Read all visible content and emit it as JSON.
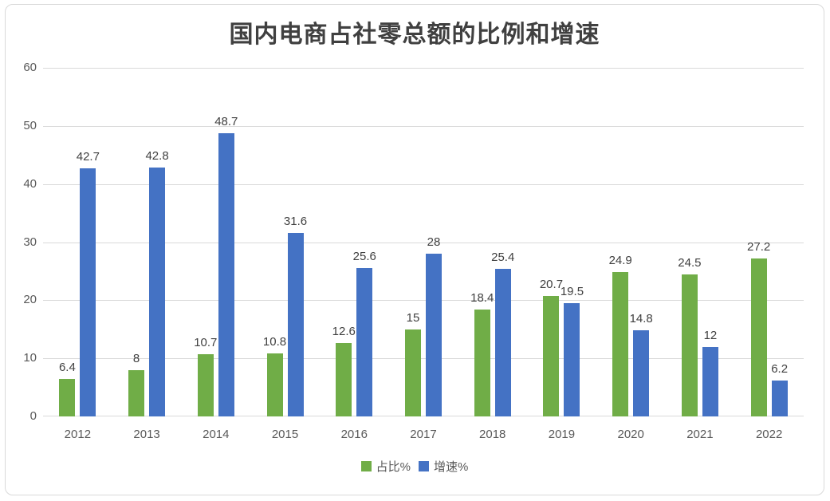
{
  "chart_data": {
    "type": "bar",
    "title": "国内电商占社零总额的比例和增速",
    "categories": [
      "2012",
      "2013",
      "2014",
      "2015",
      "2016",
      "2017",
      "2018",
      "2019",
      "2020",
      "2021",
      "2022"
    ],
    "series": [
      {
        "name": "占比%",
        "color": "#70AD47",
        "values": [
          6.4,
          8,
          10.7,
          10.8,
          12.6,
          15,
          18.4,
          20.7,
          24.9,
          24.5,
          27.2
        ]
      },
      {
        "name": "增速%",
        "color": "#4472C4",
        "values": [
          42.7,
          42.8,
          48.7,
          31.6,
          25.6,
          28,
          25.4,
          19.5,
          14.8,
          12,
          6.2
        ]
      }
    ],
    "y_axis": {
      "min": 0,
      "max": 60,
      "step": 10,
      "ticks": [
        "0",
        "10",
        "20",
        "30",
        "40",
        "50",
        "60"
      ]
    },
    "xlabel": "",
    "ylabel": "",
    "grid": true,
    "data_labels": true,
    "legend_position": "bottom",
    "colors": {
      "gridline": "#d9d9d9",
      "axis_text": "#595959",
      "data_label_text": "#404040",
      "title_text": "#404040",
      "frame_border": "#d9d9d9",
      "background": "#ffffff"
    }
  }
}
